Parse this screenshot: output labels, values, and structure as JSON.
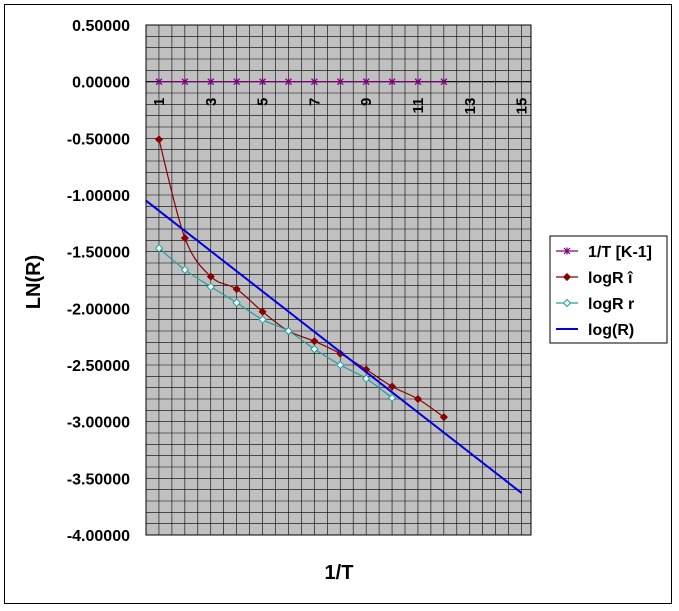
{
  "chart_data": {
    "type": "line",
    "title": "",
    "xlabel": "1/T",
    "ylabel": "LN(R)",
    "xlim": [
      0.5,
      15.5
    ],
    "ylim": [
      -4.0,
      0.5
    ],
    "y_ticks": [
      0.5,
      0.0,
      -0.5,
      -1.0,
      -1.5,
      -2.0,
      -2.5,
      -3.0,
      -3.5,
      -4.0
    ],
    "y_tick_labels": [
      "0.50000",
      "0.00000",
      "-0.50000",
      "-1.00000",
      "-1.50000",
      "-2.00000",
      "-2.50000",
      "-3.00000",
      "-3.50000",
      "-4.00000"
    ],
    "x_tick_labels": [
      "1",
      "3",
      "5",
      "7",
      "9",
      "11",
      "13",
      "15"
    ],
    "x_tick_values": [
      1,
      3,
      5,
      7,
      9,
      11,
      13,
      15
    ],
    "grid": true,
    "legend_position": "right",
    "series": [
      {
        "name": "1/T [K-1]",
        "color": "#800080",
        "marker": "star",
        "x": [
          1,
          2,
          3,
          4,
          5,
          6,
          7,
          8,
          9,
          10,
          11,
          12
        ],
        "y": [
          0,
          0,
          0,
          0,
          0,
          0,
          0,
          0,
          0,
          0,
          0,
          0
        ]
      },
      {
        "name": "logR î",
        "color": "#8B0000",
        "marker": "diamond",
        "x": [
          1,
          2,
          3,
          4,
          5,
          6,
          7,
          8,
          9,
          10,
          11,
          12
        ],
        "y": [
          -0.51,
          -1.38,
          -1.72,
          -1.83,
          -2.03,
          -2.2,
          -2.29,
          -2.4,
          -2.54,
          -2.69,
          -2.8,
          -2.96
        ]
      },
      {
        "name": "logR r",
        "color": "#20A0A0",
        "marker": "open-diamond",
        "x": [
          1,
          2,
          3,
          4,
          5,
          6,
          7,
          8,
          9,
          10
        ],
        "y": [
          -1.47,
          -1.66,
          -1.81,
          -1.95,
          -2.1,
          -2.2,
          -2.36,
          -2.5,
          -2.62,
          -2.79
        ]
      },
      {
        "name": "log(R)",
        "color": "#0000E0",
        "marker": "none",
        "x": [
          0.5,
          15
        ],
        "y": [
          -1.05,
          -3.63
        ]
      }
    ]
  }
}
